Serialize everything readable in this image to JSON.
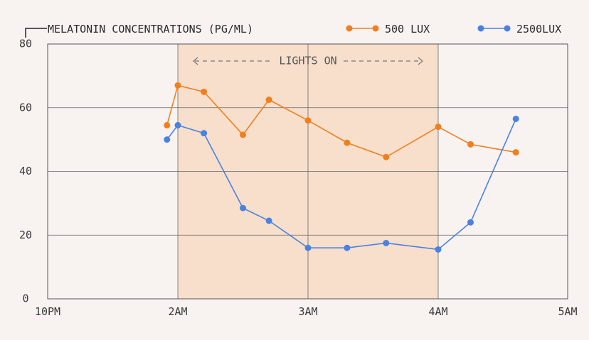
{
  "chart_data": {
    "type": "line",
    "title": "MELATONIN CONCENTRATIONS (PG/ML)",
    "ylim": [
      0,
      80
    ],
    "y_ticks": [
      0,
      20,
      40,
      60,
      80
    ],
    "x_ticks": [
      "10PM",
      "2AM",
      "3AM",
      "4AM",
      "5AM"
    ],
    "shaded_region": {
      "start": "2AM",
      "end": "4AM",
      "label": "LIGHTS ON",
      "color": "#f7dfcc"
    },
    "grid": true,
    "legend": "top-right",
    "series": [
      {
        "name": "500 LUX",
        "color": "#f07f1d",
        "x": [
          "1:40AM",
          "2AM",
          "2:12AM",
          "2:30AM",
          "2:42AM",
          "3AM",
          "3:18AM",
          "3:36AM",
          "4AM",
          "4:15AM",
          "4:36AM"
        ],
        "values": [
          54.5,
          67,
          65,
          51.5,
          62.5,
          56,
          49,
          44.5,
          54,
          48.5,
          46
        ]
      },
      {
        "name": "2500LUX",
        "color": "#4a82e0",
        "x": [
          "1:40AM",
          "2AM",
          "2:12AM",
          "2:30AM",
          "2:42AM",
          "3AM",
          "3:18AM",
          "3:36AM",
          "4AM",
          "4:15AM",
          "4:36AM"
        ],
        "values": [
          50,
          54.5,
          52,
          28.5,
          24.5,
          16,
          16,
          17.5,
          15.5,
          24,
          56.5
        ]
      }
    ]
  }
}
